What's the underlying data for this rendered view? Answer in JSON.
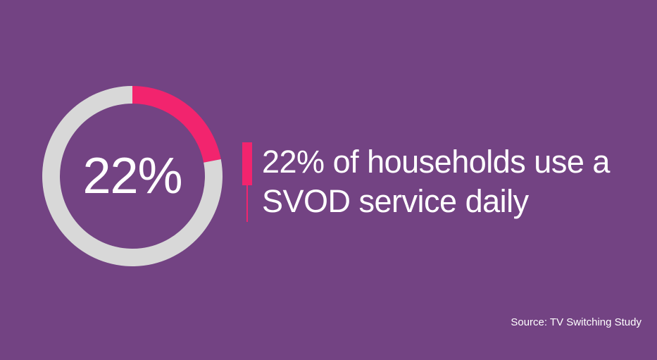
{
  "chart_data": {
    "type": "pie",
    "values": [
      22,
      78
    ],
    "center_label": "22%",
    "colors": {
      "highlight": "#f2246e",
      "remainder": "#d8d8d8",
      "background": "#734383",
      "text": "#ffffff"
    }
  },
  "statement": {
    "line1": "22% of households use a",
    "line2": "SVOD service daily"
  },
  "source": "Source: TV Switching Study"
}
